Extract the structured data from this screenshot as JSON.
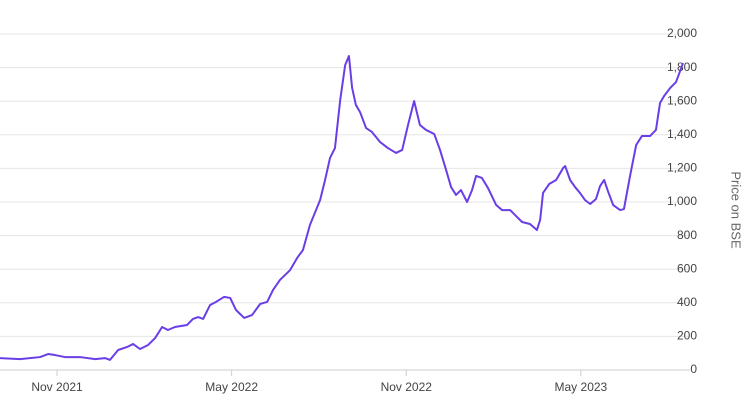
{
  "chart_data": {
    "type": "line",
    "y_label": "Price on BSE",
    "x": [
      -1.96,
      -1.27,
      -0.58,
      -0.31,
      -0.07,
      0.27,
      0.79,
      1.31,
      1.65,
      1.82,
      2.1,
      2.41,
      2.61,
      2.85,
      3.13,
      3.37,
      3.61,
      3.81,
      4.05,
      4.47,
      4.67,
      4.85,
      5.02,
      5.26,
      5.46,
      5.74,
      5.95,
      6.15,
      6.43,
      6.7,
      6.98,
      7.22,
      7.42,
      7.66,
      8.01,
      8.25,
      8.45,
      8.69,
      9.04,
      9.21,
      9.38,
      9.55,
      9.73,
      9.9,
      10.03,
      10.14,
      10.27,
      10.41,
      10.62,
      10.82,
      11.1,
      11.37,
      11.65,
      11.86,
      12.06,
      12.27,
      12.47,
      12.68,
      12.96,
      13.16,
      13.37,
      13.54,
      13.71,
      13.88,
      14.09,
      14.26,
      14.4,
      14.6,
      14.81,
      15.09,
      15.29,
      15.57,
      15.77,
      15.98,
      16.25,
      16.49,
      16.6,
      16.7,
      16.91,
      17.15,
      17.39,
      17.46,
      17.63,
      17.8,
      17.97,
      18.14,
      18.32,
      18.52,
      18.66,
      18.8,
      18.94,
      19.11,
      19.35,
      19.48,
      19.69,
      19.9,
      20.1,
      20.38,
      20.58,
      20.72,
      20.86,
      21.07,
      21.27,
      21.51
    ],
    "series": [
      {
        "color": "#6a3ee6",
        "values": [
          71,
          65,
          77,
          95,
          89,
          77,
          77,
          65,
          71,
          60,
          119,
          137,
          155,
          125,
          149,
          190,
          256,
          238,
          256,
          268,
          304,
          315,
          304,
          387,
          405,
          435,
          429,
          357,
          310,
          327,
          393,
          405,
          476,
          536,
          595,
          667,
          714,
          863,
          1012,
          1131,
          1262,
          1321,
          1607,
          1815,
          1869,
          1679,
          1577,
          1536,
          1440,
          1417,
          1357,
          1321,
          1292,
          1310,
          1458,
          1601,
          1458,
          1429,
          1405,
          1310,
          1190,
          1089,
          1042,
          1071,
          1000,
          1071,
          1155,
          1143,
          1083,
          982,
          952,
          952,
          917,
          881,
          869,
          833,
          893,
          1054,
          1107,
          1131,
          1202,
          1214,
          1131,
          1089,
          1054,
          1012,
          988,
          1018,
          1095,
          1131,
          1060,
          982,
          952,
          958,
          1155,
          1339,
          1393,
          1393,
          1429,
          1589,
          1631,
          1679,
          1714,
          1827
        ]
      }
    ],
    "xlim": [
      -1.96,
      21.75
    ],
    "xticks": [
      {
        "value": 0,
        "label": "Nov 2021"
      },
      {
        "value": 6,
        "label": "May 2022"
      },
      {
        "value": 12,
        "label": "Nov 2022"
      },
      {
        "value": 18,
        "label": "May 2023"
      }
    ],
    "ylim": [
      0,
      2000
    ],
    "yticks": [
      0,
      200,
      400,
      600,
      800,
      {
        "value": 1000,
        "label": "1,000"
      },
      {
        "value": 1200,
        "label": "1,200"
      },
      {
        "value": 1400,
        "label": "1,400"
      },
      {
        "value": 1600,
        "label": "1,600"
      },
      {
        "value": 1800,
        "label": "1,800"
      },
      {
        "value": 2000,
        "label": "2,000"
      }
    ],
    "grid": true
  }
}
